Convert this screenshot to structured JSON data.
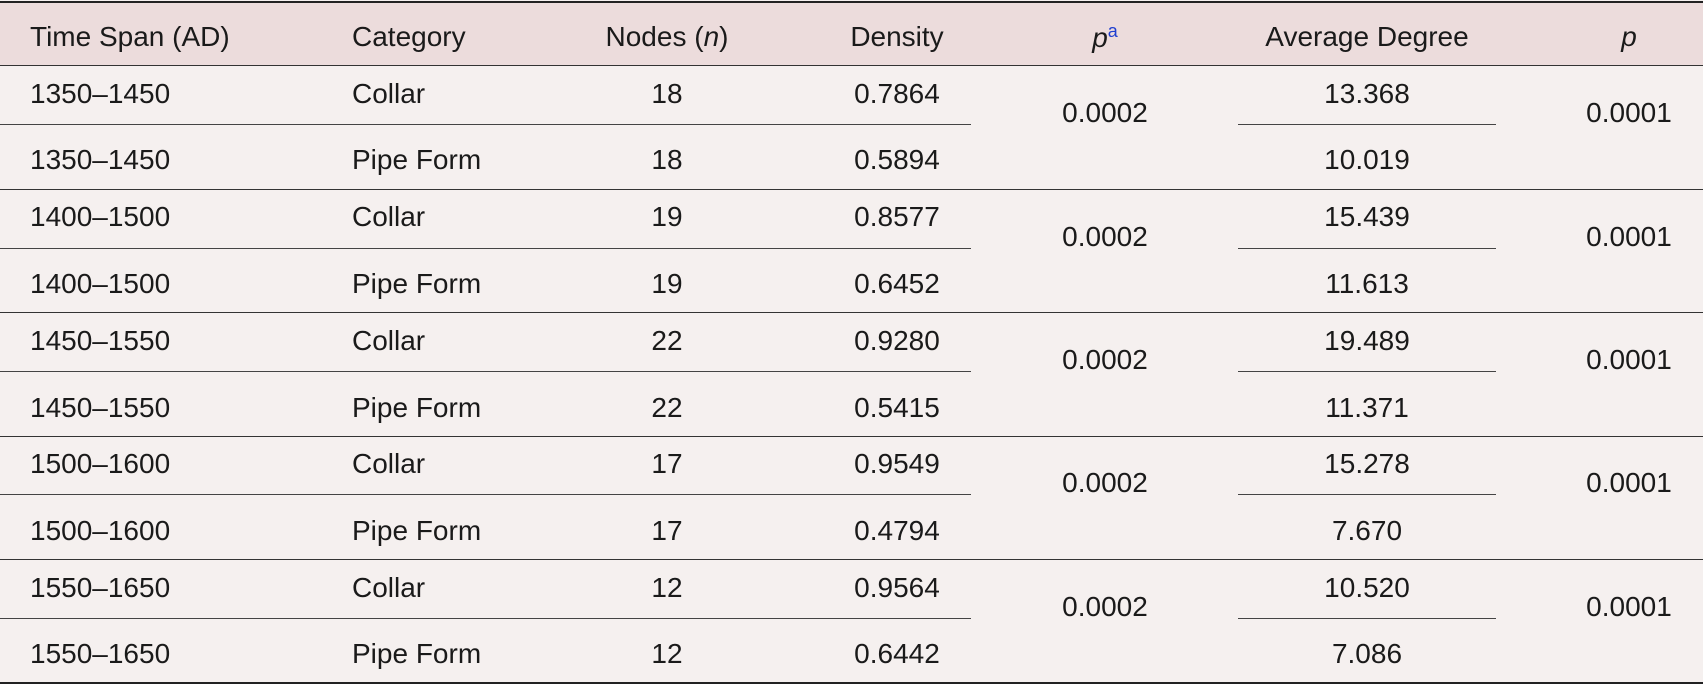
{
  "header": {
    "time_span": "Time Span (AD)",
    "category": "Category",
    "nodes": "Nodes (",
    "nodes_var": "n",
    "nodes_close": ")",
    "density": "Density",
    "p_a": "p",
    "p_a_sup": "a",
    "avg_degree": "Average Degree",
    "p": "p"
  },
  "rows": [
    {
      "span": "1350–1450",
      "category": "Collar",
      "nodes": "18",
      "density": "0.7864",
      "avg_degree": "13.368"
    },
    {
      "span": "1350–1450",
      "category": "Pipe Form",
      "nodes": "18",
      "density": "0.5894",
      "avg_degree": "10.019"
    },
    {
      "span": "1400–1500",
      "category": "Collar",
      "nodes": "19",
      "density": "0.8577",
      "avg_degree": "15.439"
    },
    {
      "span": "1400–1500",
      "category": "Pipe Form",
      "nodes": "19",
      "density": "0.6452",
      "avg_degree": "11.613"
    },
    {
      "span": "1450–1550",
      "category": "Collar",
      "nodes": "22",
      "density": "0.9280",
      "avg_degree": "19.489"
    },
    {
      "span": "1450–1550",
      "category": "Pipe Form",
      "nodes": "22",
      "density": "0.5415",
      "avg_degree": "11.371"
    },
    {
      "span": "1500–1600",
      "category": "Collar",
      "nodes": "17",
      "density": "0.9549",
      "avg_degree": "15.278"
    },
    {
      "span": "1500–1600",
      "category": "Pipe Form",
      "nodes": "17",
      "density": "0.4794",
      "avg_degree": "7.670"
    },
    {
      "span": "1550–1650",
      "category": "Collar",
      "nodes": "12",
      "density": "0.9564",
      "avg_degree": "10.520"
    },
    {
      "span": "1550–1650",
      "category": "Pipe Form",
      "nodes": "12",
      "density": "0.6442",
      "avg_degree": "7.086"
    }
  ],
  "groups": [
    {
      "p_a": "0.0002",
      "p": "0.0001"
    },
    {
      "p_a": "0.0002",
      "p": "0.0001"
    },
    {
      "p_a": "0.0002",
      "p": "0.0001"
    },
    {
      "p_a": "0.0002",
      "p": "0.0001"
    },
    {
      "p_a": "0.0002",
      "p": "0.0001"
    }
  ]
}
